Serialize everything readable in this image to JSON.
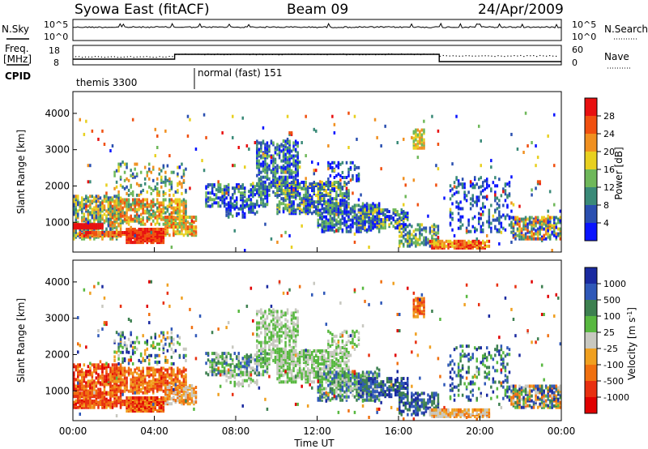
{
  "header": {
    "title": "Syowa East (fitACF)",
    "beam": "Beam 09",
    "date": "24/Apr/2009"
  },
  "strip_labels": {
    "nsky": "N.Sky",
    "nsearch": "N.Search",
    "freq_line1": "Freq.",
    "freq_line2": "[MHz]",
    "nave": "Nave",
    "cpid": "CPID",
    "nsky_top": "10^5",
    "nsky_bottom": "10^0",
    "nsearch_top": "10^5",
    "nsearch_bottom": "10^0",
    "freq_top": "18",
    "freq_bottom": "8",
    "nave_top": "60",
    "nave_bottom": "0"
  },
  "cpid_segments": [
    {
      "label": "themis 3300",
      "start_hour": 0
    },
    {
      "label": "normal (fast) 151",
      "start_hour": 6
    }
  ],
  "axes": {
    "x_label": "Time UT",
    "x_ticks": [
      "00:00",
      "04:00",
      "08:00",
      "12:00",
      "16:00",
      "20:00",
      "00:00"
    ],
    "y_label": "Slant Range [km]",
    "y_ticks": [
      "1000",
      "2000",
      "3000",
      "4000"
    ],
    "y_range_km": [
      180,
      4600
    ],
    "x_range_hours": [
      0,
      24
    ]
  },
  "power_colorbar": {
    "label": "Power [dB]",
    "ticks": [
      "4",
      "8",
      "12",
      "16",
      "20",
      "24",
      "28"
    ],
    "colors": [
      "#0a14ff",
      "#2a4fb0",
      "#3a8a78",
      "#6fb85a",
      "#e8d020",
      "#f09020",
      "#f05010",
      "#e81010"
    ]
  },
  "velocity_colorbar": {
    "label": "Velocity [m s^-1]",
    "ticks": [
      "1000",
      "500",
      "100",
      "25",
      "-25",
      "-100",
      "-500",
      "-1000"
    ],
    "colors": [
      "#1a2aa0",
      "#2f58b8",
      "#3d8050",
      "#58b840",
      "#c8c8c0",
      "#f0a020",
      "#f07010",
      "#e83010",
      "#e00000"
    ]
  },
  "chart_data": {
    "type": "heatmap",
    "x": "Time UT (hours)",
    "xlim": [
      0,
      24
    ],
    "ylim": [
      180,
      4600
    ],
    "panels": [
      "Power [dB]",
      "Velocity [m s^-1]"
    ]
  }
}
